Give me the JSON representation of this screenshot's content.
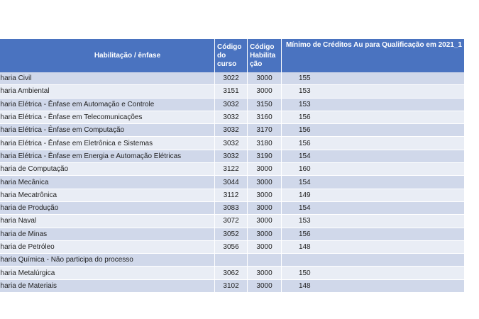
{
  "table": {
    "headers": {
      "name": "Habilitação / ênfase",
      "curso": "Código do curso",
      "habilitacao": "Código Habilita ção",
      "minimo": "Mínimo de Créditos Au para Qualificação em 2021_1"
    },
    "rows": [
      {
        "name": "nharia Civil",
        "curso": "3022",
        "habilitacao": "3000",
        "minimo": "155"
      },
      {
        "name": "nharia Ambiental",
        "curso": "3151",
        "habilitacao": "3000",
        "minimo": "153"
      },
      {
        "name": "nharia Elétrica - Ênfase em Automação e Controle",
        "curso": "3032",
        "habilitacao": "3150",
        "minimo": "153"
      },
      {
        "name": "nharia Elétrica - Ênfase em Telecomunicações",
        "curso": "3032",
        "habilitacao": "3160",
        "minimo": "156"
      },
      {
        "name": "nharia Elétrica - Ênfase em Computação",
        "curso": "3032",
        "habilitacao": "3170",
        "minimo": "156"
      },
      {
        "name": "nharia Elétrica - Ênfase em Eletrônica e Sistemas",
        "curso": "3032",
        "habilitacao": "3180",
        "minimo": "156"
      },
      {
        "name": "nharia Elétrica - Ênfase em Energia e Automação Elétricas",
        "curso": "3032",
        "habilitacao": "3190",
        "minimo": "154"
      },
      {
        "name": "nharia de Computação",
        "curso": "3122",
        "habilitacao": "3000",
        "minimo": "160"
      },
      {
        "name": "nharia Mecânica",
        "curso": "3044",
        "habilitacao": "3000",
        "minimo": "154"
      },
      {
        "name": "nharia Mecatrônica",
        "curso": "3112",
        "habilitacao": "3000",
        "minimo": "149"
      },
      {
        "name": "nharia de Produção",
        "curso": "3083",
        "habilitacao": "3000",
        "minimo": "154"
      },
      {
        "name": "nharia Naval",
        "curso": "3072",
        "habilitacao": "3000",
        "minimo": "153"
      },
      {
        "name": "nharia de Minas",
        "curso": "3052",
        "habilitacao": "3000",
        "minimo": "156"
      },
      {
        "name": "nharia de Petróleo",
        "curso": "3056",
        "habilitacao": "3000",
        "minimo": "148"
      },
      {
        "name": "nharia Química - Não participa do processo",
        "curso": "",
        "habilitacao": "",
        "minimo": ""
      },
      {
        "name": "nharia Metalúrgica",
        "curso": "3062",
        "habilitacao": "3000",
        "minimo": "150"
      },
      {
        "name": "nharia de Materiais",
        "curso": "3102",
        "habilitacao": "3000",
        "minimo": "148"
      }
    ]
  },
  "colors": {
    "header_bg": "#4a73c0",
    "row_dark": "#d0d8ea",
    "row_light": "#e9edf5"
  }
}
